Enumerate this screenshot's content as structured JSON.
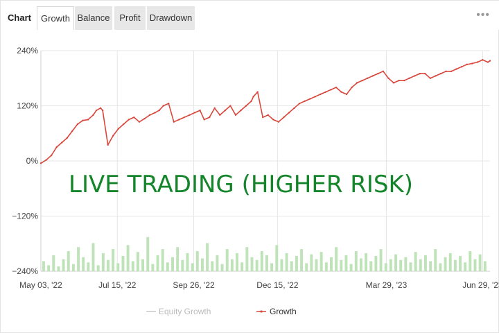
{
  "tabs": {
    "label": "Chart",
    "items": [
      {
        "label": "Growth",
        "active": true
      },
      {
        "label": "Balance",
        "active": false
      },
      {
        "label": "Profit",
        "active": false
      },
      {
        "label": "Drawdown",
        "active": false
      }
    ]
  },
  "menu_icon": "more-dots-icon",
  "overlay": "LIVE TRADING (HIGHER RISK)",
  "colors": {
    "growth_line": "#d9463b",
    "equity_line": "#c8c8c8",
    "bars": "#bfe3b8",
    "overlay": "#14852a",
    "grid": "#e6e6e6"
  },
  "chart_data": {
    "type": "line",
    "title": "",
    "xlabel": "",
    "ylabel": "",
    "ylim": [
      -240,
      240
    ],
    "y_ticks": [
      "240%",
      "120%",
      "0%",
      "−120%",
      "−240%"
    ],
    "y_tick_values": [
      240,
      120,
      0,
      -120,
      -240
    ],
    "x_ticks": [
      "May 03, '22",
      "Jul 15, '22",
      "Sep 26, '22",
      "Dec 15, '22",
      "Mar 29, '23",
      "Jun 29, '23"
    ],
    "x_tick_dates": [
      "2022-05-03",
      "2022-07-15",
      "2022-09-26",
      "2022-12-15",
      "2023-03-29",
      "2023-06-29"
    ],
    "grid": true,
    "legend_position": "bottom-center",
    "series": [
      {
        "name": "Equity Growth",
        "x": [],
        "values": []
      },
      {
        "name": "Growth",
        "x": [
          "2022-05-03",
          "2022-05-08",
          "2022-05-13",
          "2022-05-18",
          "2022-05-23",
          "2022-05-28",
          "2022-06-02",
          "2022-06-07",
          "2022-06-12",
          "2022-06-17",
          "2022-06-22",
          "2022-06-25",
          "2022-06-29",
          "2022-07-01",
          "2022-07-06",
          "2022-07-11",
          "2022-07-16",
          "2022-07-21",
          "2022-07-26",
          "2022-07-31",
          "2022-08-05",
          "2022-08-10",
          "2022-08-15",
          "2022-08-20",
          "2022-08-24",
          "2022-08-28",
          "2022-09-02",
          "2022-09-07",
          "2022-09-12",
          "2022-09-17",
          "2022-09-22",
          "2022-09-27",
          "2022-10-02",
          "2022-10-06",
          "2022-10-11",
          "2022-10-16",
          "2022-10-21",
          "2022-10-26",
          "2022-10-31",
          "2022-11-05",
          "2022-11-10",
          "2022-11-15",
          "2022-11-20",
          "2022-11-22",
          "2022-11-26",
          "2022-12-01",
          "2022-12-06",
          "2022-12-11",
          "2022-12-16",
          "2022-12-21",
          "2022-12-26",
          "2022-12-31",
          "2023-01-05",
          "2023-01-10",
          "2023-01-15",
          "2023-01-20",
          "2023-01-25",
          "2023-01-30",
          "2023-02-04",
          "2023-02-09",
          "2023-02-14",
          "2023-02-19",
          "2023-02-24",
          "2023-03-01",
          "2023-03-06",
          "2023-03-11",
          "2023-03-16",
          "2023-03-21",
          "2023-03-26",
          "2023-03-31",
          "2023-04-05",
          "2023-04-10",
          "2023-04-15",
          "2023-04-20",
          "2023-04-25",
          "2023-04-30",
          "2023-05-05",
          "2023-05-10",
          "2023-05-15",
          "2023-05-20",
          "2023-05-25",
          "2023-05-30",
          "2023-06-04",
          "2023-06-09",
          "2023-06-14",
          "2023-06-19",
          "2023-06-24",
          "2023-06-29",
          "2023-07-04",
          "2023-07-06"
        ],
        "values": [
          -5,
          2,
          12,
          30,
          40,
          50,
          65,
          80,
          88,
          90,
          100,
          110,
          115,
          110,
          35,
          55,
          70,
          80,
          90,
          95,
          85,
          92,
          100,
          105,
          110,
          120,
          125,
          85,
          90,
          95,
          100,
          105,
          110,
          90,
          95,
          115,
          100,
          110,
          120,
          100,
          110,
          120,
          130,
          140,
          150,
          95,
          100,
          90,
          85,
          95,
          105,
          115,
          125,
          130,
          135,
          140,
          145,
          150,
          155,
          160,
          150,
          145,
          160,
          170,
          175,
          180,
          185,
          190,
          195,
          180,
          170,
          175,
          175,
          180,
          185,
          190,
          190,
          180,
          185,
          190,
          195,
          195,
          200,
          205,
          210,
          212,
          215,
          220,
          215,
          218
        ]
      }
    ],
    "bars": [
      {
        "name": "",
        "values": [
          25,
          15,
          40,
          12,
          30,
          50,
          18,
          60,
          35,
          22,
          70,
          15,
          45,
          28,
          55,
          20,
          38,
          65,
          25,
          48,
          30,
          85,
          18,
          40,
          55,
          22,
          35,
          60,
          28,
          45,
          20,
          50,
          32,
          70,
          25,
          40,
          18,
          55,
          30,
          45,
          22,
          60,
          35,
          28,
          50,
          40,
          20,
          65,
          30,
          45,
          25,
          38,
          55,
          20,
          42,
          30,
          48,
          22,
          35,
          60,
          28,
          40,
          18,
          50,
          32,
          45,
          25,
          38,
          55,
          20,
          30,
          42,
          28,
          35,
          22,
          48,
          30,
          40,
          25,
          55,
          20,
          35,
          45,
          28,
          38,
          22,
          50,
          30,
          42,
          25
        ]
      }
    ]
  },
  "legend": {
    "equity": "Equity Growth",
    "growth": "Growth"
  }
}
